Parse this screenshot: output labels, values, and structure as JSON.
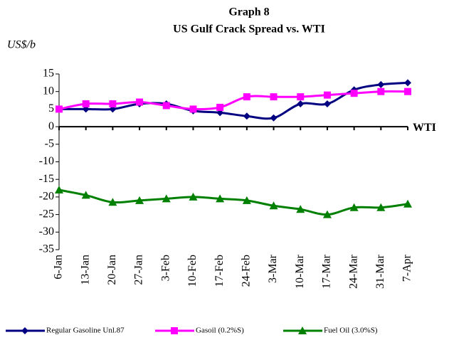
{
  "chart_data": {
    "type": "line",
    "title": "Graph 8",
    "subtitle": "US Gulf Crack Spread vs. WTI",
    "ylabel": "US$/b",
    "annotation": "WTI",
    "categories": [
      "6-Jan",
      "13-Jan",
      "20-Jan",
      "27-Jan",
      "3-Feb",
      "10-Feb",
      "17-Feb",
      "24-Feb",
      "3-Mar",
      "10-Mar",
      "17-Mar",
      "24-Mar",
      "31-Mar",
      "7-Apr"
    ],
    "series": [
      {
        "name": "Regular Gasoline Unl.87",
        "color": "#000080",
        "marker": "diamond",
        "values": [
          5,
          5,
          5,
          6.5,
          6.5,
          4.5,
          4,
          3,
          2.5,
          6.5,
          6.5,
          10.5,
          12,
          12.5
        ]
      },
      {
        "name": "Gasoil (0.2%S)",
        "color": "#ff00ff",
        "marker": "square",
        "values": [
          5,
          6.5,
          6.5,
          7,
          6,
          5,
          5.5,
          8.5,
          8.5,
          8.5,
          9,
          9.5,
          10,
          10
        ]
      },
      {
        "name": "Fuel Oil (3.0%S)",
        "color": "#008000",
        "marker": "triangle",
        "values": [
          -18,
          -19.5,
          -21.5,
          -21,
          -20.5,
          -20,
          -20.5,
          -21,
          -22.5,
          -23.5,
          -25,
          -23,
          -23,
          -22
        ]
      }
    ],
    "ylim": [
      -35,
      15
    ],
    "yticks": [
      -35,
      -30,
      -25,
      -20,
      -15,
      -10,
      -5,
      0,
      5,
      10,
      15
    ],
    "grid": false,
    "legend": "bottom"
  }
}
